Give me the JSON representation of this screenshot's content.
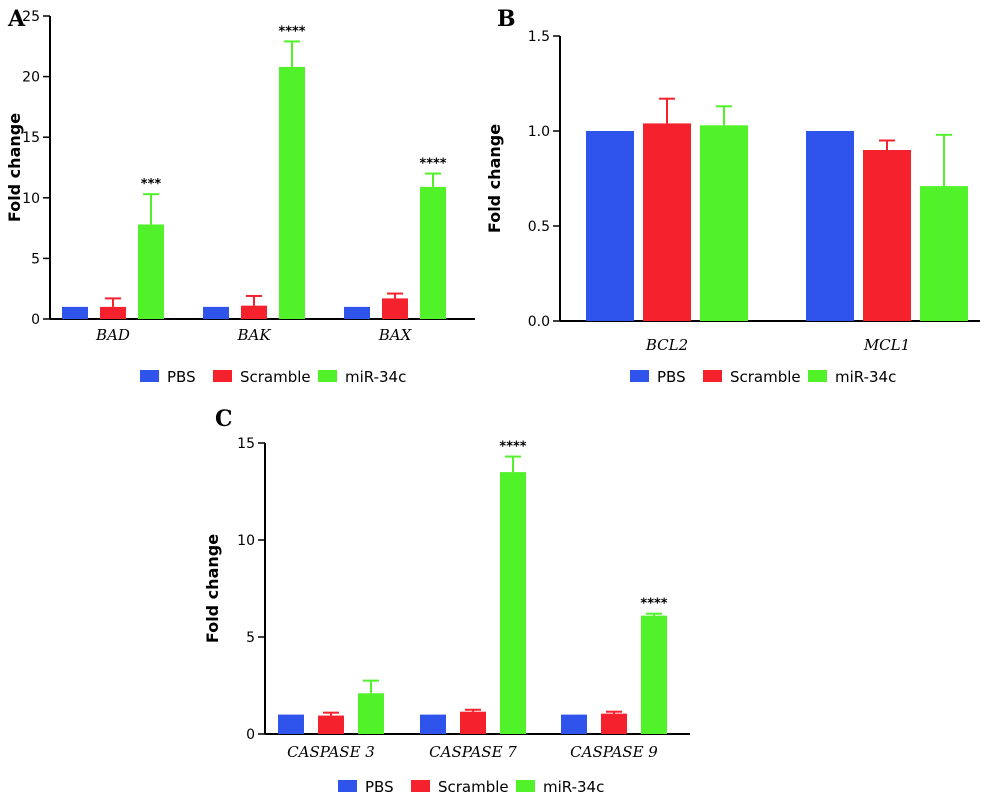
{
  "colors": {
    "PBS": "#2f54eb",
    "Scramble": "#f5222d",
    "miR-34c": "#52f22a"
  },
  "chart_data": [
    {
      "panel": "A",
      "type": "bar",
      "ylabel": "Fold change",
      "ylim": [
        0,
        25
      ],
      "yticks": [
        0,
        5,
        10,
        15,
        20,
        25
      ],
      "categories": [
        "BAD",
        "BAK",
        "BAX"
      ],
      "series": [
        {
          "name": "PBS",
          "values": [
            1,
            1,
            1
          ],
          "errors": [
            0,
            0,
            0
          ]
        },
        {
          "name": "Scramble",
          "values": [
            1.0,
            1.1,
            1.7
          ],
          "errors": [
            0.7,
            0.8,
            0.4
          ]
        },
        {
          "name": "miR-34c",
          "values": [
            7.8,
            20.8,
            10.9
          ],
          "errors": [
            2.5,
            2.1,
            1.1
          ]
        }
      ],
      "annotations": [
        "***",
        "****",
        "****"
      ],
      "legend": [
        "PBS",
        "Scramble",
        "miR-34c"
      ]
    },
    {
      "panel": "B",
      "type": "bar",
      "ylabel": "Fold change",
      "ylim": [
        0,
        1.5
      ],
      "yticks": [
        "0.0",
        "0.5",
        "1.0",
        "1.5"
      ],
      "categories": [
        "BCL2",
        "MCL1"
      ],
      "series": [
        {
          "name": "PBS",
          "values": [
            1.0,
            1.0
          ],
          "errors": [
            0,
            0
          ]
        },
        {
          "name": "Scramble",
          "values": [
            1.04,
            0.9
          ],
          "errors": [
            0.13,
            0.05
          ]
        },
        {
          "name": "miR-34c",
          "values": [
            1.03,
            0.71
          ],
          "errors": [
            0.1,
            0.27
          ]
        }
      ],
      "annotations": [
        "",
        ""
      ],
      "legend": [
        "PBS",
        "Scramble",
        "miR-34c"
      ]
    },
    {
      "panel": "C",
      "type": "bar",
      "ylabel": "Fold change",
      "ylim": [
        0,
        15
      ],
      "yticks": [
        0,
        5,
        10,
        15
      ],
      "categories": [
        "CASPASE 3",
        "CASPASE 7",
        "CASPASE 9"
      ],
      "series": [
        {
          "name": "PBS",
          "values": [
            1,
            1,
            1
          ],
          "errors": [
            0,
            0,
            0
          ]
        },
        {
          "name": "Scramble",
          "values": [
            0.95,
            1.15,
            1.05
          ],
          "errors": [
            0.15,
            0.1,
            0.1
          ]
        },
        {
          "name": "miR-34c",
          "values": [
            2.1,
            13.5,
            6.1
          ],
          "errors": [
            0.65,
            0.8,
            0.1
          ]
        }
      ],
      "annotations": [
        "",
        "****",
        "****"
      ],
      "legend": [
        "PBS",
        "Scramble",
        "miR-34c"
      ]
    }
  ]
}
